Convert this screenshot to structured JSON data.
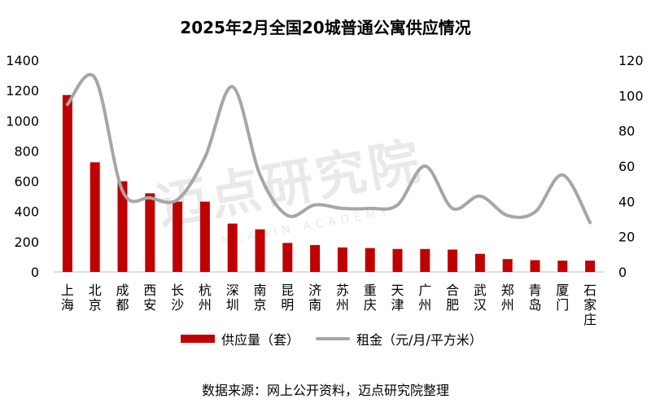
{
  "title": "2025年2月全国20城普通公寓供应情况",
  "source": "数据来源：网上公开资料，迈点研究院整理",
  "watermark": {
    "main": "迈点研究院",
    "sub": "MEADIN ACADEMY"
  },
  "colors": {
    "bar": "#c00000",
    "line": "#a6a6a6"
  },
  "chart_data": {
    "type": "bar",
    "categories": [
      "上海",
      "北京",
      "成都",
      "西安",
      "长沙",
      "杭州",
      "深圳",
      "南京",
      "昆明",
      "济南",
      "苏州",
      "重庆",
      "天津",
      "广州",
      "合肥",
      "武汉",
      "郑州",
      "青岛",
      "厦门",
      "石家庄"
    ],
    "series": [
      {
        "name": "供应量（套）",
        "type": "bar",
        "axis": "left",
        "values": [
          1170,
          725,
          600,
          520,
          465,
          465,
          320,
          282,
          192,
          178,
          162,
          158,
          152,
          152,
          148,
          120,
          85,
          78,
          75,
          75
        ]
      },
      {
        "name": "租金（元/月/平方米）",
        "type": "line",
        "axis": "right",
        "smooth": true,
        "values": [
          95,
          110,
          46,
          42,
          41,
          65,
          105,
          55,
          32,
          38,
          36,
          36,
          38,
          60,
          36,
          43,
          32,
          34,
          55,
          28
        ]
      }
    ],
    "y_left": {
      "ylim": [
        0,
        1400
      ],
      "ticks": [
        "0",
        "200",
        "400",
        "600",
        "800",
        "1000",
        "1200",
        "1400"
      ]
    },
    "y_right": {
      "ylim": [
        0,
        120
      ],
      "ticks": [
        "0",
        "20",
        "40",
        "60",
        "80",
        "100",
        "120"
      ]
    },
    "legend_position": "bottom",
    "grid": false
  }
}
